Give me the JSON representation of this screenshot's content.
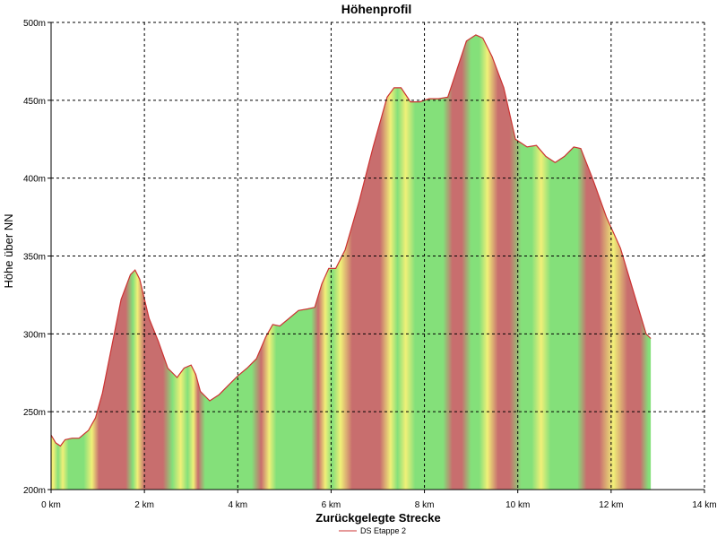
{
  "chart_data": {
    "type": "area",
    "title": "Höhenprofil",
    "xlabel": "Zurückgelegte Strecke",
    "ylabel": "Höhe über NN",
    "xlim": [
      0,
      14
    ],
    "ylim": [
      200,
      500
    ],
    "x_ticks": [
      0,
      2,
      4,
      6,
      8,
      10,
      12,
      14
    ],
    "x_tick_labels": [
      "0 km",
      "2 km",
      "4 km",
      "6 km",
      "8 km",
      "10 km",
      "12 km",
      "14 km"
    ],
    "y_ticks": [
      200,
      250,
      300,
      350,
      400,
      450,
      500
    ],
    "y_tick_labels": [
      "200m",
      "250m",
      "300m",
      "350m",
      "400m",
      "450m",
      "500m"
    ],
    "grid": true,
    "legend_position": "bottom-center",
    "series": [
      {
        "name": "DS Etappe 2",
        "color": "#cc3333",
        "x": [
          0,
          0.1,
          0.2,
          0.3,
          0.45,
          0.6,
          0.8,
          0.95,
          1.1,
          1.3,
          1.5,
          1.7,
          1.8,
          1.9,
          2.1,
          2.3,
          2.5,
          2.7,
          2.85,
          3.0,
          3.1,
          3.2,
          3.4,
          3.6,
          3.8,
          4.0,
          4.2,
          4.4,
          4.6,
          4.75,
          4.9,
          5.1,
          5.3,
          5.5,
          5.65,
          5.8,
          5.95,
          6.1,
          6.3,
          6.6,
          6.9,
          7.2,
          7.35,
          7.5,
          7.7,
          7.9,
          8.1,
          8.3,
          8.5,
          8.7,
          8.9,
          9.1,
          9.25,
          9.45,
          9.7,
          9.95,
          10.2,
          10.4,
          10.6,
          10.8,
          11.0,
          11.2,
          11.35,
          11.6,
          11.9,
          12.2,
          12.5,
          12.75,
          12.85
        ],
        "values": [
          235,
          230,
          228,
          232,
          233,
          233,
          238,
          246,
          262,
          292,
          322,
          338,
          341,
          335,
          310,
          295,
          278,
          272,
          278,
          280,
          274,
          263,
          257,
          261,
          267,
          273,
          278,
          284,
          298,
          306,
          305,
          310,
          315,
          316,
          317,
          332,
          342,
          342,
          354,
          385,
          420,
          452,
          458,
          458,
          449,
          449,
          451,
          451,
          452,
          470,
          488,
          492,
          490,
          478,
          458,
          425,
          420,
          421,
          414,
          410,
          414,
          420,
          419,
          400,
          375,
          355,
          325,
          300,
          297
        ]
      }
    ],
    "gradient_colors": {
      "steep": "#c86e6e",
      "moderate": "#f0f078",
      "flat": "#84e07a"
    }
  }
}
